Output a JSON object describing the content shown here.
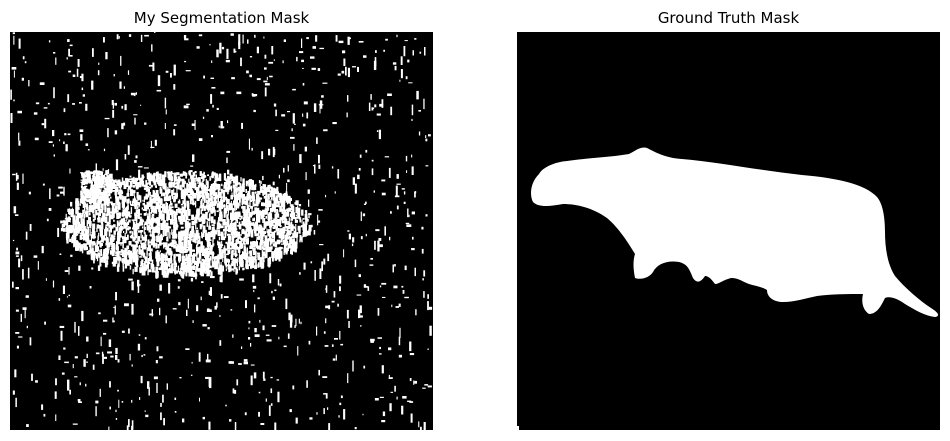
{
  "panels": [
    {
      "title": "My Segmentation Mask"
    },
    {
      "title": "Ground Truth Mask"
    }
  ],
  "colors": {
    "background": "#000000",
    "foreground": "#ffffff"
  }
}
